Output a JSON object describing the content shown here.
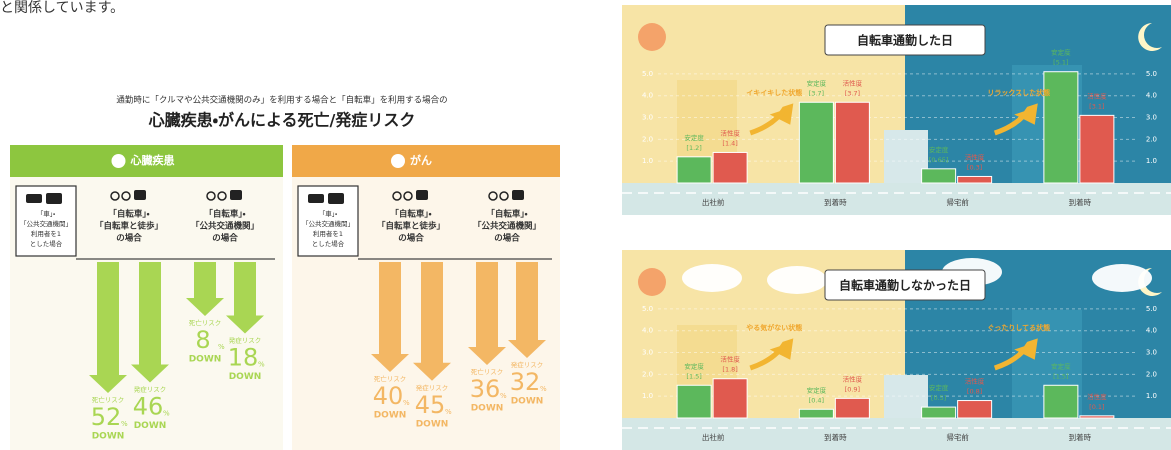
{
  "intro_text": "と関係しています。",
  "infographic": {
    "subtitle": "通勤時に「クルマや公共交通機関のみ」を利用する場合と「自転車」を利用する場合の",
    "title": "心臓疾患・がんによる死亡/発症リスク",
    "unit": "%",
    "down": "DOWN",
    "panels": [
      {
        "heading": "心臓疾患",
        "color": "#8dc63f",
        "arrow_color": "#a9d653",
        "baseline": [
          "「車」・",
          "「公共交通機関」",
          "利用者を1",
          "とした場合"
        ],
        "groups": [
          {
            "label": [
              "「自転車」・",
              "「自転車と徒歩」",
              "の場合"
            ],
            "items": [
              {
                "label": "死亡リスク",
                "value": 52
              },
              {
                "label": "発症リスク",
                "value": 46
              }
            ]
          },
          {
            "label": [
              "「自転車」・",
              "「公共交通機関」",
              "の場合"
            ],
            "items": [
              {
                "label": "死亡リスク",
                "value": 8
              },
              {
                "label": "発症リスク",
                "value": 18
              }
            ]
          }
        ]
      },
      {
        "heading": "がん",
        "color": "#f0a848",
        "arrow_color": "#f3b764",
        "baseline": [
          "「車」・",
          "「公共交通機関」",
          "利用者を1",
          "とした場合"
        ],
        "groups": [
          {
            "label": [
              "「自転車」・",
              "「自転車と徒歩」",
              "の場合"
            ],
            "items": [
              {
                "label": "死亡リスク",
                "value": 40
              },
              {
                "label": "発症リスク",
                "value": 45
              }
            ]
          },
          {
            "label": [
              "「自転車」・",
              "「公共交通機関」",
              "の場合"
            ],
            "items": [
              {
                "label": "死亡リスク",
                "value": 36
              },
              {
                "label": "発症リスク",
                "value": 32
              }
            ]
          }
        ]
      }
    ]
  },
  "chart_data": [
    {
      "type": "bar",
      "title": "自転車通勤した日",
      "categories": [
        "出社前",
        "到着時",
        "帰宅前",
        "到着時"
      ],
      "series": [
        {
          "name": "安定度",
          "color": "#5cb85c",
          "values": [
            1.2,
            3.7,
            0.65,
            5.1
          ],
          "value_labels": [
            "[1.2]",
            "[3.7]",
            "[0.65]",
            "[5.1]"
          ]
        },
        {
          "name": "活性度",
          "color": "#e05a4f",
          "values": [
            1.4,
            3.7,
            0.3,
            3.1
          ],
          "value_labels": [
            "[1.4]",
            "[3.7]",
            "[0.3]",
            "[3.1]"
          ]
        }
      ],
      "ylim": [
        0,
        5.5
      ],
      "yticks": [
        {
          "value": 1,
          "label": "1.0"
        },
        {
          "value": 2,
          "label": "2.0"
        },
        {
          "value": 3,
          "label": "3.0"
        },
        {
          "value": 4,
          "label": "4.0"
        },
        {
          "value": 5,
          "label": "5.0"
        }
      ],
      "annotations": [
        "イキイキした状態",
        "リラックスした状態"
      ]
    },
    {
      "type": "bar",
      "title": "自転車通勤しなかった日",
      "categories": [
        "出社前",
        "到着時",
        "帰宅前",
        "到着時"
      ],
      "series": [
        {
          "name": "安定度",
          "color": "#5cb85c",
          "values": [
            1.5,
            0.4,
            0.5,
            1.5
          ],
          "value_labels": [
            "[1.5]",
            "[0.4]",
            "[0.5]",
            "[1.5]"
          ]
        },
        {
          "name": "活性度",
          "color": "#e05a4f",
          "values": [
            1.8,
            0.9,
            0.8,
            0.1
          ],
          "value_labels": [
            "[1.8]",
            "[0.9]",
            "[0.8]",
            "[0.1]"
          ]
        }
      ],
      "ylim": [
        0,
        5.5
      ],
      "yticks": [
        {
          "value": 1,
          "label": "1.0"
        },
        {
          "value": 2,
          "label": "2.0"
        },
        {
          "value": 3,
          "label": "3.0"
        },
        {
          "value": 4,
          "label": "4.0"
        },
        {
          "value": 5,
          "label": "5.0"
        }
      ],
      "annotations": [
        "やる気がない状態",
        "ぐったりしてる状態"
      ]
    }
  ]
}
